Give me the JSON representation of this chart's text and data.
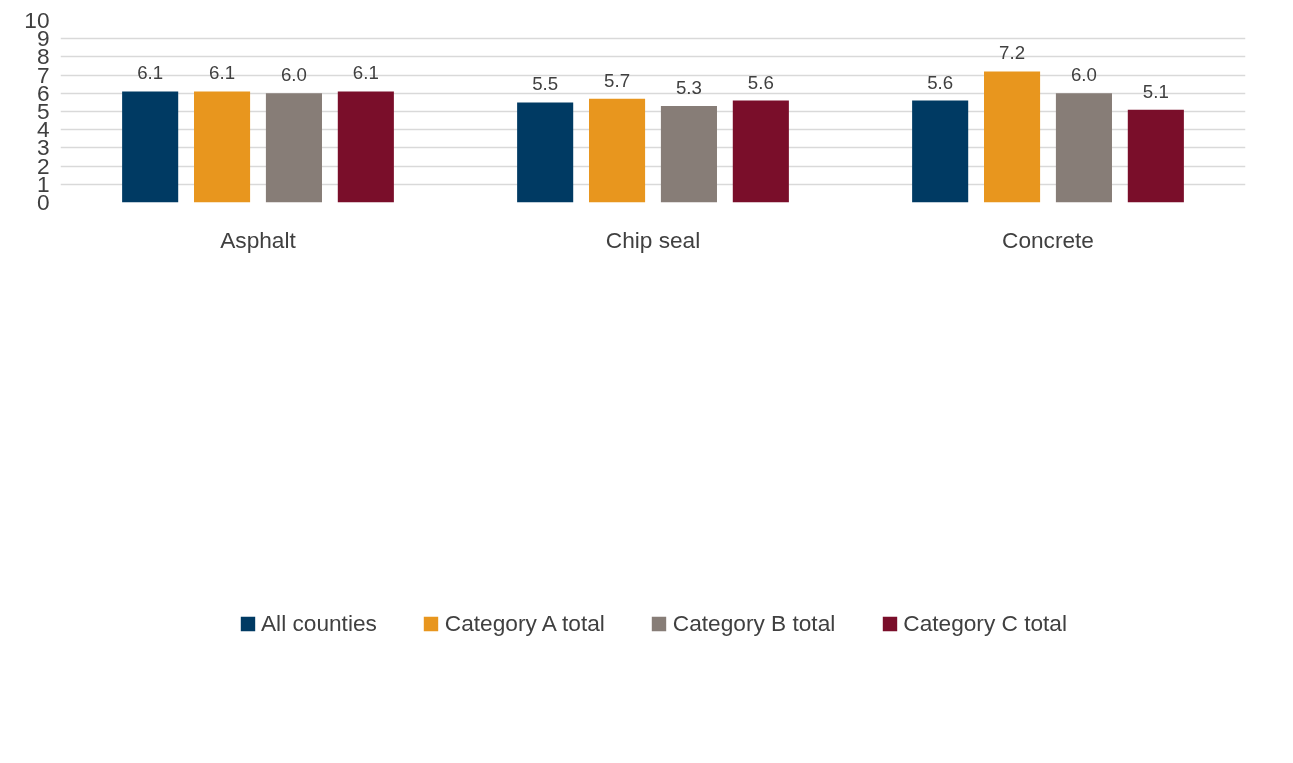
{
  "chart_data": {
    "type": "bar",
    "categories": [
      "Asphalt",
      "Chip seal",
      "Concrete"
    ],
    "series": [
      {
        "name": "All counties",
        "color": "#003a63",
        "values": [
          6.1,
          5.5,
          5.6
        ],
        "value_labels": [
          "6.1",
          "5.5",
          "5.6"
        ]
      },
      {
        "name": "Category A total",
        "color": "#e8961e",
        "values": [
          6.1,
          5.7,
          7.2
        ],
        "value_labels": [
          "6.1",
          "5.7",
          "7.2"
        ]
      },
      {
        "name": "Category B total",
        "color": "#877d77",
        "values": [
          6.0,
          5.3,
          6.0
        ],
        "value_labels": [
          "6.0",
          "5.3",
          "6.0"
        ]
      },
      {
        "name": "Category C total",
        "color": "#7a0e2a",
        "values": [
          6.1,
          5.6,
          5.1
        ],
        "value_labels": [
          "6.1",
          "5.6",
          "5.1"
        ]
      }
    ],
    "ylim": [
      0,
      10
    ],
    "yticks": [
      0,
      1,
      2,
      3,
      4,
      5,
      6,
      7,
      8,
      9,
      10
    ],
    "grid": "y",
    "legend": "bottom"
  }
}
